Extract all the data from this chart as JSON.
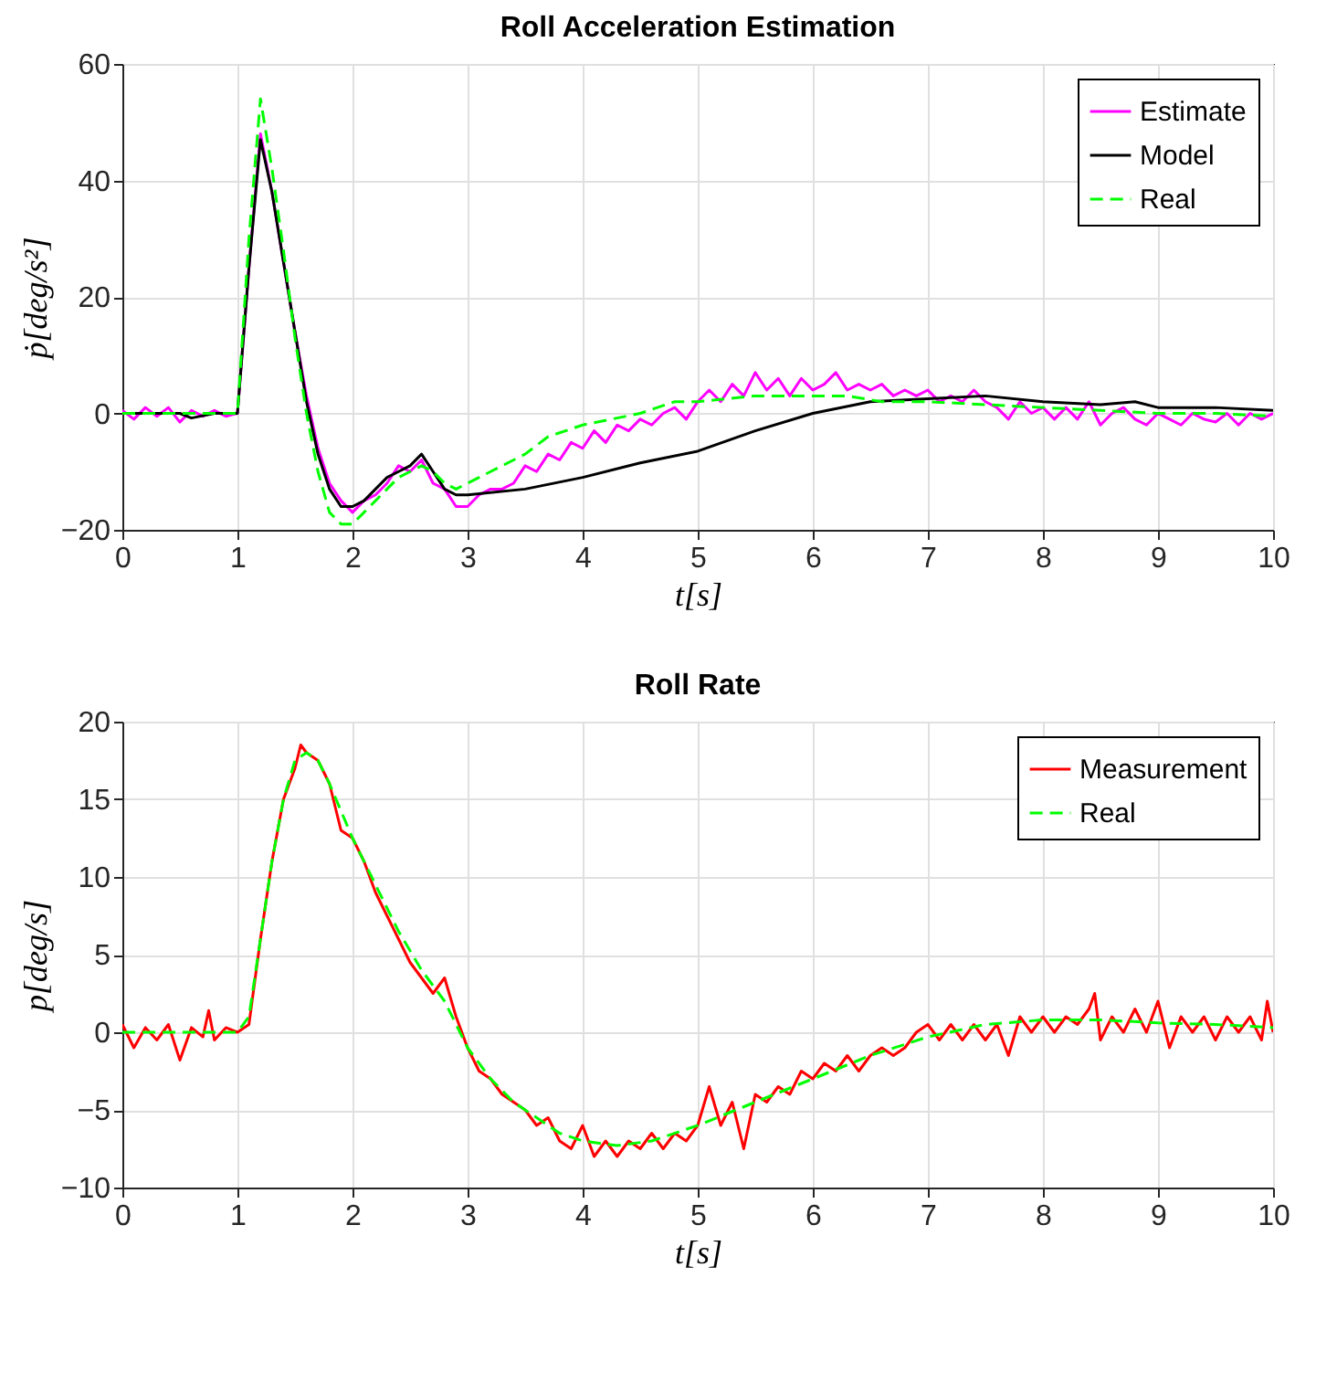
{
  "chart_data": [
    {
      "type": "line",
      "title": "Roll Acceleration Estimation",
      "xlabel": "t[s]",
      "ylabel": "ṗ[deg/s²]",
      "xlim": [
        0,
        10
      ],
      "ylim": [
        -20,
        60
      ],
      "xticks": [
        0,
        1,
        2,
        3,
        4,
        5,
        6,
        7,
        8,
        9,
        10
      ],
      "yticks": [
        -20,
        0,
        20,
        40,
        60
      ],
      "grid": true,
      "legend": "top right",
      "series": [
        {
          "name": "Estimate",
          "color": "#ff00ff",
          "line_style": "solid",
          "x": [
            0,
            0.1,
            0.2,
            0.3,
            0.4,
            0.5,
            0.6,
            0.7,
            0.8,
            0.9,
            1.0,
            1.1,
            1.2,
            1.3,
            1.4,
            1.5,
            1.6,
            1.7,
            1.8,
            1.9,
            2.0,
            2.1,
            2.2,
            2.3,
            2.4,
            2.5,
            2.6,
            2.7,
            2.8,
            2.9,
            3.0,
            3.1,
            3.2,
            3.3,
            3.4,
            3.5,
            3.6,
            3.7,
            3.8,
            3.9,
            4.0,
            4.1,
            4.2,
            4.3,
            4.4,
            4.5,
            4.6,
            4.7,
            4.8,
            4.9,
            5.0,
            5.1,
            5.2,
            5.3,
            5.4,
            5.5,
            5.6,
            5.7,
            5.8,
            5.9,
            6.0,
            6.1,
            6.2,
            6.3,
            6.4,
            6.5,
            6.6,
            6.7,
            6.8,
            6.9,
            7.0,
            7.1,
            7.2,
            7.3,
            7.4,
            7.5,
            7.6,
            7.7,
            7.8,
            7.9,
            8.0,
            8.1,
            8.2,
            8.3,
            8.4,
            8.5,
            8.6,
            8.7,
            8.8,
            8.9,
            9.0,
            9.1,
            9.2,
            9.3,
            9.4,
            9.5,
            9.6,
            9.7,
            9.8,
            9.9,
            10
          ],
          "values": [
            0.5,
            -1,
            1,
            -0.5,
            1,
            -1.5,
            0.5,
            -0.5,
            0.5,
            -0.5,
            0,
            25,
            48,
            38,
            26,
            14,
            3,
            -6,
            -12,
            -15,
            -17,
            -15,
            -14,
            -12,
            -9,
            -10,
            -8,
            -12,
            -13,
            -16,
            -16,
            -14,
            -13,
            -13,
            -12,
            -9,
            -10,
            -7,
            -8,
            -5,
            -6,
            -3,
            -5,
            -2,
            -3,
            -1,
            -2,
            0,
            1,
            -1,
            2,
            4,
            2,
            5,
            3,
            7,
            4,
            6,
            3,
            6,
            4,
            5,
            7,
            4,
            5,
            4,
            5,
            3,
            4,
            3,
            4,
            2,
            3,
            2,
            4,
            2,
            1,
            -1,
            2,
            0,
            1,
            -1,
            1,
            -1,
            2,
            -2,
            0,
            1,
            -1,
            -2,
            0,
            -1,
            -2,
            0,
            -1,
            -1.5,
            0,
            -2,
            0,
            -1,
            0
          ]
        },
        {
          "name": "Model",
          "color": "#000000",
          "line_style": "solid",
          "x": [
            0,
            0.5,
            0.6,
            0.8,
            1.0,
            1.1,
            1.2,
            1.3,
            1.4,
            1.5,
            1.6,
            1.7,
            1.8,
            1.9,
            2.0,
            2.1,
            2.2,
            2.3,
            2.4,
            2.5,
            2.6,
            2.7,
            2.8,
            2.9,
            3.0,
            3.5,
            4.0,
            4.5,
            5.0,
            5.5,
            6.0,
            6.5,
            7.0,
            7.5,
            8.0,
            8.5,
            8.8,
            9.0,
            9.5,
            10
          ],
          "values": [
            0,
            0,
            -0.8,
            0,
            0,
            25,
            47,
            38,
            26,
            14,
            2,
            -7,
            -13,
            -16,
            -16,
            -15,
            -13,
            -11,
            -10,
            -9,
            -7,
            -10,
            -13,
            -14,
            -14,
            -13,
            -11,
            -8.5,
            -6.5,
            -3,
            0,
            2,
            2.5,
            3,
            2,
            1.5,
            2,
            1,
            1,
            0.5
          ]
        },
        {
          "name": "Real",
          "color": "#00ff00",
          "line_style": "dashed",
          "x": [
            0,
            1.0,
            1.1,
            1.2,
            1.3,
            1.4,
            1.5,
            1.6,
            1.7,
            1.8,
            1.9,
            2.0,
            2.1,
            2.2,
            2.3,
            2.4,
            2.5,
            2.6,
            2.7,
            2.8,
            2.9,
            3.0,
            3.2,
            3.5,
            3.7,
            4.0,
            4.5,
            4.8,
            5.0,
            5.5,
            6.0,
            6.3,
            6.6,
            7.0,
            7.5,
            8.0,
            8.5,
            9.0,
            9.5,
            10
          ],
          "values": [
            0,
            0,
            30,
            54,
            42,
            28,
            13,
            0,
            -10,
            -17,
            -19,
            -19,
            -17,
            -15,
            -13,
            -11,
            -10,
            -9,
            -10,
            -12,
            -13,
            -12,
            -10,
            -7,
            -4,
            -2,
            0,
            2,
            2,
            3,
            3,
            3,
            2,
            2,
            1.5,
            1,
            0.5,
            0,
            0,
            -0.5
          ]
        }
      ]
    },
    {
      "type": "line",
      "title": "Roll Rate",
      "xlabel": "t[s]",
      "ylabel": "p[deg/s]",
      "xlim": [
        0,
        10
      ],
      "ylim": [
        -10,
        20
      ],
      "xticks": [
        0,
        1,
        2,
        3,
        4,
        5,
        6,
        7,
        8,
        9,
        10
      ],
      "yticks": [
        -10,
        -5,
        0,
        5,
        10,
        15,
        20
      ],
      "grid": true,
      "legend": "top right",
      "series": [
        {
          "name": "Measurement",
          "color": "#ff0000",
          "line_style": "solid",
          "x": [
            0,
            0.1,
            0.2,
            0.3,
            0.4,
            0.5,
            0.6,
            0.7,
            0.75,
            0.8,
            0.9,
            1.0,
            1.1,
            1.2,
            1.3,
            1.4,
            1.5,
            1.55,
            1.6,
            1.7,
            1.8,
            1.9,
            2.0,
            2.1,
            2.2,
            2.3,
            2.4,
            2.5,
            2.6,
            2.7,
            2.8,
            2.9,
            3.0,
            3.1,
            3.2,
            3.3,
            3.4,
            3.5,
            3.6,
            3.7,
            3.8,
            3.9,
            4.0,
            4.1,
            4.2,
            4.3,
            4.4,
            4.5,
            4.6,
            4.7,
            4.8,
            4.9,
            5.0,
            5.1,
            5.2,
            5.3,
            5.4,
            5.5,
            5.6,
            5.7,
            5.8,
            5.9,
            6.0,
            6.1,
            6.2,
            6.3,
            6.4,
            6.5,
            6.6,
            6.7,
            6.8,
            6.9,
            7.0,
            7.1,
            7.2,
            7.3,
            7.4,
            7.5,
            7.6,
            7.7,
            7.8,
            7.9,
            8.0,
            8.1,
            8.2,
            8.3,
            8.4,
            8.45,
            8.5,
            8.6,
            8.7,
            8.8,
            8.9,
            9.0,
            9.1,
            9.2,
            9.3,
            9.4,
            9.5,
            9.6,
            9.7,
            9.8,
            9.9,
            9.95,
            10
          ],
          "values": [
            0.5,
            -1,
            0.3,
            -0.5,
            0.5,
            -1.8,
            0.3,
            -0.3,
            1.4,
            -0.5,
            0.3,
            0,
            0.5,
            6,
            11,
            15,
            17,
            18.5,
            18,
            17.5,
            16,
            13,
            12.5,
            11,
            9,
            7.5,
            6,
            4.5,
            3.5,
            2.5,
            3.5,
            1,
            -1,
            -2.5,
            -3,
            -4,
            -4.5,
            -5,
            -6,
            -5.5,
            -7,
            -7.5,
            -6,
            -8,
            -7,
            -8,
            -7,
            -7.5,
            -6.5,
            -7.5,
            -6.5,
            -7,
            -6,
            -3.5,
            -6,
            -4.5,
            -7.5,
            -4,
            -4.5,
            -3.5,
            -4,
            -2.5,
            -3,
            -2,
            -2.5,
            -1.5,
            -2.5,
            -1.5,
            -1,
            -1.5,
            -1,
            0,
            0.5,
            -0.5,
            0.5,
            -0.5,
            0.5,
            -0.5,
            0.5,
            -1.5,
            1,
            0,
            1,
            0,
            1,
            0.5,
            1.5,
            2.5,
            -0.5,
            1,
            0,
            1.5,
            0,
            2,
            -1,
            1,
            0,
            1,
            -0.5,
            1,
            0,
            1,
            -0.5,
            2,
            0
          ]
        },
        {
          "name": "Real",
          "color": "#00ff00",
          "line_style": "dashed",
          "x": [
            0,
            1.0,
            1.1,
            1.2,
            1.3,
            1.4,
            1.5,
            1.6,
            1.7,
            1.8,
            2.0,
            2.2,
            2.4,
            2.6,
            2.8,
            3.0,
            3.2,
            3.4,
            3.6,
            3.8,
            4.0,
            4.3,
            4.6,
            5.0,
            5.5,
            6.0,
            6.5,
            7.0,
            7.5,
            8.0,
            8.5,
            9.0,
            9.5,
            10
          ],
          "values": [
            0,
            0,
            1,
            6,
            11,
            15,
            17.5,
            18,
            17.5,
            16,
            12.5,
            9.5,
            6.5,
            4,
            2,
            -1,
            -3,
            -4.5,
            -5.5,
            -6.5,
            -7,
            -7.3,
            -7,
            -6,
            -4.5,
            -3,
            -1.5,
            -0.3,
            0.5,
            0.8,
            0.8,
            0.6,
            0.5,
            0.3
          ]
        }
      ]
    }
  ]
}
